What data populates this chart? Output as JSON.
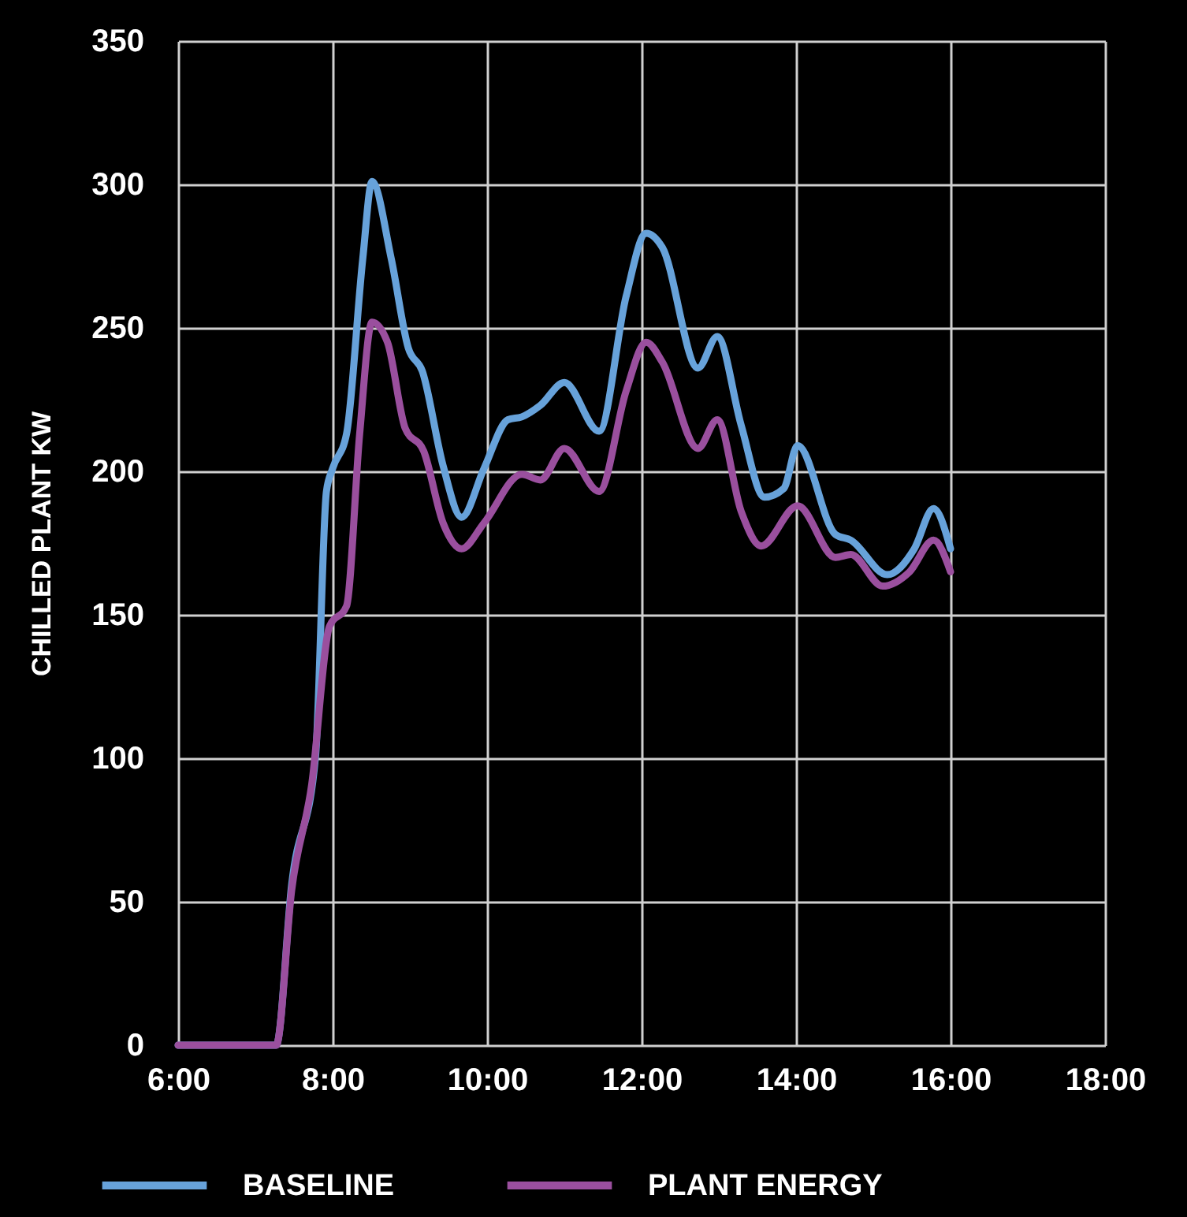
{
  "chart_data": {
    "type": "line",
    "ylabel": "CHILLED PLANT KW",
    "xlim": [
      6,
      18
    ],
    "xticks": [
      {
        "value": 6,
        "label": "6:00"
      },
      {
        "value": 8,
        "label": "8:00"
      },
      {
        "value": 10,
        "label": "10:00"
      },
      {
        "value": 12,
        "label": "12:00"
      },
      {
        "value": 14,
        "label": "14:00"
      },
      {
        "value": 16,
        "label": "16:00"
      },
      {
        "value": 18,
        "label": "18:00"
      }
    ],
    "ylim": [
      0,
      350
    ],
    "yticks": [
      0,
      50,
      100,
      150,
      200,
      250,
      300,
      350
    ],
    "grid": true,
    "legend": "bottom",
    "line_style": "solid",
    "series": [
      {
        "name": "BASELINE",
        "color": "#67a2da",
        "x": [
          6,
          7.06,
          7.27,
          7.47,
          7.78,
          7.92,
          8,
          8.18,
          8.39,
          8.51,
          8.76,
          8.98,
          9.16,
          9.43,
          9.67,
          9.96,
          10.27,
          10.45,
          10.69,
          11,
          11.45,
          11.8,
          12.06,
          12.27,
          12.73,
          12.98,
          13.29,
          13.59,
          13.84,
          14.02,
          14.51,
          14.71,
          15.18,
          15.53,
          15.78,
          16
        ],
        "values": [
          0,
          0,
          0,
          56,
          101,
          193,
          201,
          213,
          274,
          301,
          274,
          243,
          235,
          202,
          184,
          201,
          218,
          219,
          223,
          231,
          214,
          261,
          283,
          278,
          236,
          247,
          216,
          191,
          194,
          209,
          178,
          176,
          164,
          173,
          187,
          173
        ]
      },
      {
        "name": "PLANT ENERGY",
        "color": "#9a4f9e",
        "x": [
          6,
          7.06,
          7.27,
          7.47,
          7.73,
          7.96,
          8.18,
          8.35,
          8.51,
          8.71,
          8.94,
          9.18,
          9.43,
          9.67,
          9.96,
          10.45,
          10.69,
          11,
          11.45,
          11.8,
          12.06,
          12.27,
          12.73,
          12.98,
          13.29,
          13.55,
          14.02,
          14.51,
          14.71,
          15.12,
          15.47,
          15.78,
          16
        ],
        "values": [
          0,
          0,
          0,
          54,
          91,
          146,
          153,
          213,
          252,
          245,
          215,
          207,
          182,
          173,
          182,
          199,
          197,
          208,
          193,
          228,
          245,
          238,
          208,
          218,
          186,
          174,
          188,
          170,
          171,
          160,
          165,
          176,
          165
        ]
      }
    ]
  }
}
